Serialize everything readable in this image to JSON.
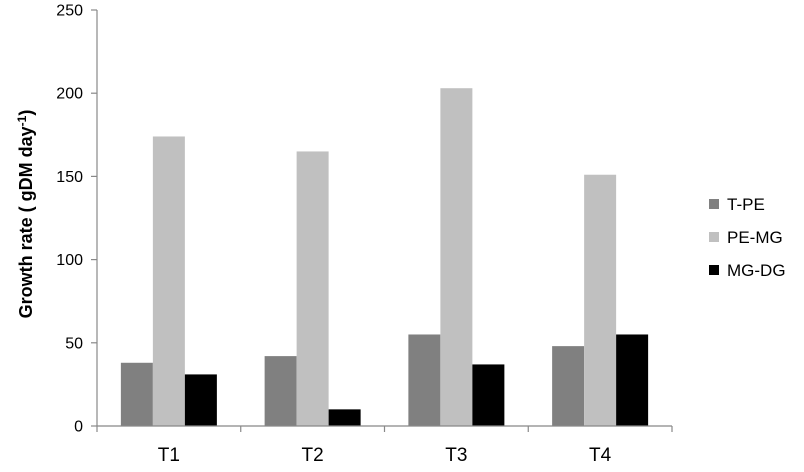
{
  "chart_data": {
    "type": "bar",
    "title": "",
    "xlabel": "",
    "ylabel": "Growth rate ( gDM day",
    "ylabel_superscript": "-1",
    "ylabel_suffix": ")",
    "categories": [
      "T1",
      "T2",
      "T3",
      "T4"
    ],
    "series": [
      {
        "name": "T-PE",
        "values": [
          38,
          42,
          55,
          48
        ],
        "color": "#808080"
      },
      {
        "name": "PE-MG",
        "values": [
          174,
          165,
          203,
          151
        ],
        "color": "#c0c0c0"
      },
      {
        "name": "MG-DG",
        "values": [
          31,
          10,
          37,
          55
        ],
        "color": "#000000"
      }
    ],
    "ylim": [
      0,
      250
    ],
    "yticks": [
      0,
      50,
      100,
      150,
      200,
      250
    ],
    "grid": false,
    "legend": "right"
  }
}
